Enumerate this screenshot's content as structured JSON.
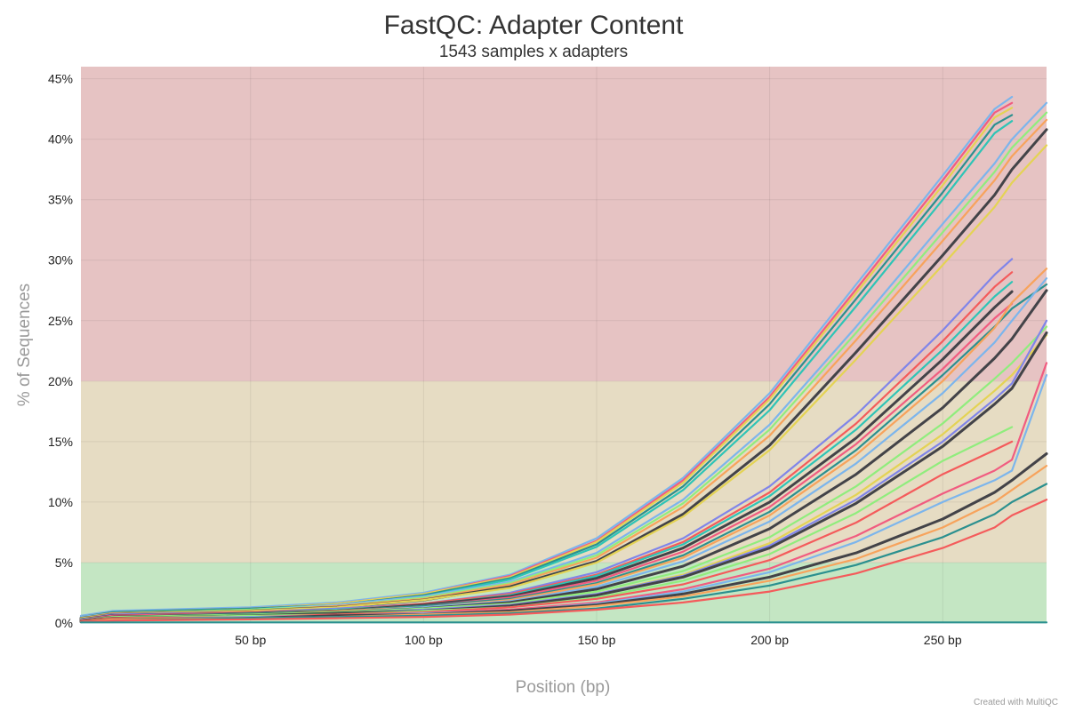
{
  "chart_data": {
    "type": "line",
    "title": "FastQC: Adapter Content",
    "subtitle": "1543 samples x adapters",
    "xlabel": "Position (bp)",
    "ylabel": "% of Sequences",
    "xlim": [
      1,
      280
    ],
    "ylim": [
      0,
      46
    ],
    "x_ticks": [
      {
        "value": 50,
        "label": "50 bp"
      },
      {
        "value": 100,
        "label": "100 bp"
      },
      {
        "value": 150,
        "label": "150 bp"
      },
      {
        "value": 200,
        "label": "200 bp"
      },
      {
        "value": 250,
        "label": "250 bp"
      }
    ],
    "y_ticks": [
      {
        "value": 0,
        "label": "0%"
      },
      {
        "value": 5,
        "label": "5%"
      },
      {
        "value": 10,
        "label": "10%"
      },
      {
        "value": 15,
        "label": "15%"
      },
      {
        "value": 20,
        "label": "20%"
      },
      {
        "value": 25,
        "label": "25%"
      },
      {
        "value": 30,
        "label": "30%"
      },
      {
        "value": 35,
        "label": "35%"
      },
      {
        "value": 40,
        "label": "40%"
      },
      {
        "value": 45,
        "label": "45%"
      }
    ],
    "bands": [
      {
        "from": 0,
        "to": 5,
        "color": "#c4e6c3"
      },
      {
        "from": 5,
        "to": 20,
        "color": "#e6dcc3"
      },
      {
        "from": 20,
        "to": 46,
        "color": "#e6c3c3"
      }
    ],
    "grid": true,
    "legend": "none",
    "x": [
      1,
      10,
      50,
      75,
      100,
      125,
      150,
      175,
      200,
      225,
      250,
      265,
      270,
      280
    ],
    "series": [
      {
        "color": "#7cb5ec",
        "values": [
          0.6,
          1.0,
          1.3,
          1.7,
          2.5,
          4.0,
          7.0,
          12.0,
          19.0,
          28.0,
          37.0,
          42.5,
          43.5,
          null
        ]
      },
      {
        "color": "#f15c80",
        "values": [
          0.5,
          0.9,
          1.2,
          1.6,
          2.4,
          3.9,
          6.8,
          11.8,
          18.7,
          27.6,
          36.6,
          42.2,
          43.0,
          null
        ]
      },
      {
        "color": "#e4d354",
        "values": [
          0.5,
          0.9,
          1.2,
          1.6,
          2.4,
          3.8,
          6.7,
          11.6,
          18.5,
          27.3,
          36.2,
          41.8,
          42.6,
          null
        ]
      },
      {
        "color": "#2b908f",
        "values": [
          0.5,
          0.9,
          1.2,
          1.5,
          2.3,
          3.7,
          6.5,
          11.3,
          18.1,
          26.8,
          35.6,
          41.2,
          42.0,
          null
        ]
      },
      {
        "color": "#2ec4b6",
        "values": [
          0.5,
          0.8,
          1.1,
          1.5,
          2.2,
          3.6,
          6.3,
          11.0,
          17.6,
          26.2,
          35.0,
          40.5,
          41.5,
          null
        ]
      },
      {
        "color": "#7cb5ec",
        "values": [
          0.5,
          0.8,
          1.1,
          1.5,
          2.2,
          3.4,
          5.8,
          10.2,
          16.4,
          24.5,
          33.0,
          38.0,
          40.0,
          43.0
        ]
      },
      {
        "color": "#90ed7d",
        "values": [
          0.4,
          0.8,
          1.1,
          1.4,
          2.1,
          3.3,
          5.6,
          9.9,
          16.0,
          24.0,
          32.3,
          37.3,
          39.3,
          42.2
        ]
      },
      {
        "color": "#f7a35c",
        "values": [
          0.4,
          0.8,
          1.0,
          1.4,
          2.0,
          3.2,
          5.4,
          9.6,
          15.5,
          23.4,
          31.6,
          36.6,
          38.6,
          41.6
        ]
      },
      {
        "color": "#434348",
        "values": [
          0.4,
          0.7,
          1.0,
          1.3,
          1.9,
          3.0,
          5.1,
          9.0,
          14.7,
          22.4,
          30.4,
          35.4,
          37.5,
          40.8
        ]
      },
      {
        "color": "#e4d354",
        "values": [
          0.4,
          0.7,
          1.0,
          1.3,
          1.9,
          2.9,
          5.0,
          8.8,
          14.3,
          21.8,
          29.6,
          34.4,
          36.4,
          39.5
        ]
      },
      {
        "color": "#8085e9",
        "values": [
          0.3,
          0.7,
          0.9,
          1.2,
          1.6,
          2.5,
          4.2,
          7.0,
          11.3,
          17.2,
          24.2,
          28.8,
          30.1,
          null
        ]
      },
      {
        "color": "#f45b5b",
        "values": [
          0.3,
          0.6,
          0.9,
          1.1,
          1.6,
          2.4,
          4.0,
          6.7,
          10.8,
          16.5,
          23.3,
          27.8,
          29.0,
          null
        ]
      },
      {
        "color": "#2ec4b6",
        "values": [
          0.3,
          0.6,
          0.8,
          1.1,
          1.5,
          2.3,
          3.9,
          6.5,
          10.5,
          16.0,
          22.6,
          27.0,
          28.2,
          null
        ]
      },
      {
        "color": "#434348",
        "values": [
          0.3,
          0.6,
          0.8,
          1.0,
          1.5,
          2.2,
          3.7,
          6.2,
          10.0,
          15.3,
          21.8,
          26.1,
          27.4,
          null
        ]
      },
      {
        "color": "#f15c80",
        "values": [
          0.3,
          0.6,
          0.8,
          1.0,
          1.4,
          2.1,
          3.5,
          5.9,
          9.6,
          14.8,
          21.0,
          25.2,
          26.4,
          null
        ]
      },
      {
        "color": "#2b908f",
        "values": [
          0.3,
          0.5,
          0.8,
          1.0,
          1.4,
          2.0,
          3.3,
          5.6,
          9.2,
          14.3,
          20.5,
          24.5,
          26.0,
          28.0
        ]
      },
      {
        "color": "#f7a35c",
        "values": [
          0.3,
          0.5,
          0.7,
          1.0,
          1.3,
          1.9,
          3.2,
          5.4,
          8.9,
          13.9,
          20.0,
          24.4,
          26.5,
          29.3
        ]
      },
      {
        "color": "#7cb5ec",
        "values": [
          0.3,
          0.5,
          0.7,
          0.9,
          1.3,
          1.8,
          3.0,
          5.1,
          8.4,
          13.2,
          19.0,
          23.2,
          25.0,
          28.5
        ]
      },
      {
        "color": "#434348",
        "values": [
          0.2,
          0.5,
          0.7,
          0.9,
          1.2,
          1.7,
          2.8,
          4.7,
          7.8,
          12.3,
          17.8,
          21.9,
          23.5,
          27.5
        ]
      },
      {
        "color": "#90ed7d",
        "values": [
          0.2,
          0.5,
          0.7,
          0.9,
          1.2,
          1.6,
          2.6,
          4.3,
          7.1,
          11.3,
          16.5,
          20.2,
          21.5,
          24.5
        ]
      },
      {
        "color": "#e4d354",
        "values": [
          0.2,
          0.4,
          0.6,
          0.8,
          1.1,
          1.5,
          2.4,
          4.0,
          6.6,
          10.6,
          15.6,
          19.2,
          20.5,
          23.8
        ]
      },
      {
        "color": "#8085e9",
        "values": [
          0.2,
          0.4,
          0.6,
          0.8,
          1.1,
          1.5,
          2.4,
          3.9,
          6.4,
          10.2,
          15.0,
          18.5,
          19.8,
          25.0
        ]
      },
      {
        "color": "#434348",
        "values": [
          0.2,
          0.4,
          0.6,
          0.8,
          1.0,
          1.4,
          2.3,
          3.8,
          6.2,
          9.9,
          14.6,
          18.1,
          19.4,
          24.0
        ]
      },
      {
        "color": "#90ed7d",
        "values": [
          0.2,
          0.4,
          0.6,
          0.7,
          1.0,
          1.3,
          2.1,
          3.5,
          5.7,
          9.1,
          13.4,
          15.5,
          16.2,
          null
        ]
      },
      {
        "color": "#f45b5b",
        "values": [
          0.2,
          0.4,
          0.5,
          0.7,
          0.9,
          1.3,
          2.0,
          3.2,
          5.2,
          8.3,
          12.3,
          14.3,
          15.0,
          null
        ]
      },
      {
        "color": "#f15c80",
        "values": [
          0.1,
          0.3,
          0.5,
          0.6,
          0.8,
          1.1,
          1.7,
          2.8,
          4.5,
          7.2,
          10.7,
          12.6,
          13.5,
          21.5
        ]
      },
      {
        "color": "#7cb5ec",
        "values": [
          0.1,
          0.3,
          0.5,
          0.6,
          0.8,
          1.0,
          1.6,
          2.6,
          4.2,
          6.7,
          10.0,
          11.8,
          12.6,
          20.5
        ]
      },
      {
        "color": "#434348",
        "values": [
          0.1,
          0.3,
          0.4,
          0.6,
          0.7,
          1.0,
          1.5,
          2.4,
          3.8,
          5.8,
          8.6,
          10.8,
          11.8,
          14.0
        ]
      },
      {
        "color": "#f7a35c",
        "values": [
          0.1,
          0.3,
          0.4,
          0.5,
          0.7,
          0.9,
          1.4,
          2.2,
          3.5,
          5.3,
          7.9,
          10.0,
          11.0,
          13.0
        ]
      },
      {
        "color": "#2b908f",
        "values": [
          0.1,
          0.2,
          0.4,
          0.5,
          0.6,
          0.8,
          1.2,
          2.0,
          3.1,
          4.8,
          7.1,
          9.0,
          10.0,
          11.5
        ]
      },
      {
        "color": "#f45b5b",
        "values": [
          0.1,
          0.2,
          0.3,
          0.4,
          0.5,
          0.7,
          1.1,
          1.7,
          2.6,
          4.1,
          6.2,
          7.9,
          8.9,
          10.2
        ]
      },
      {
        "color": "#2b908f",
        "values": [
          0.05,
          0.05,
          0.05,
          0.05,
          0.05,
          0.05,
          0.05,
          0.05,
          0.05,
          0.05,
          0.05,
          0.05,
          0.05,
          0.05
        ]
      }
    ]
  },
  "credit": "Created with MultiQC"
}
